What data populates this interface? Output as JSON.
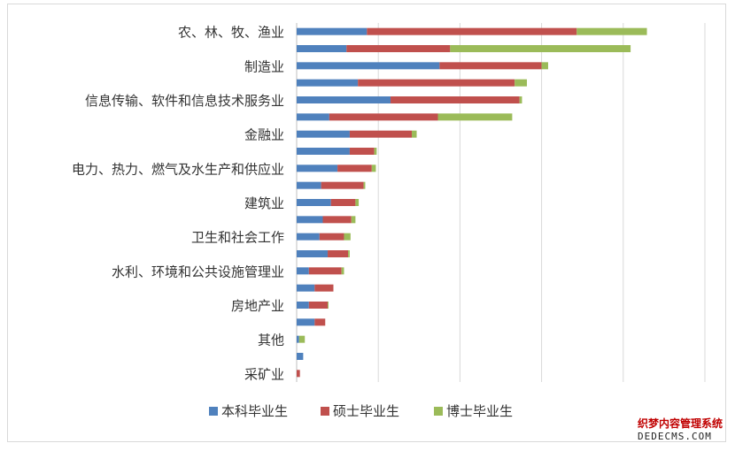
{
  "chart_data": {
    "type": "bar",
    "orientation": "horizontal",
    "stacked": true,
    "title": "",
    "xlabel": "",
    "ylabel": "",
    "tick_labels_visible": false,
    "categories": [
      "农、林、牧、渔业",
      "",
      "制造业",
      "",
      "信息传输、软件和信息技术服务业",
      "",
      "金融业",
      "",
      "电力、热力、燃气及水生产和供应业",
      "",
      "建筑业",
      "",
      "卫生和社会工作",
      "",
      "水利、环境和公共设施管理业",
      "",
      "房地产业",
      "",
      "其他",
      "",
      "采矿业"
    ],
    "series": [
      {
        "name": "本科毕业生",
        "color": "#4f81bd",
        "values": [
          0.86,
          0.61,
          1.75,
          0.75,
          1.15,
          0.4,
          0.65,
          0.65,
          0.5,
          0.3,
          0.42,
          0.32,
          0.28,
          0.38,
          0.15,
          0.22,
          0.15,
          0.22,
          0.03,
          0.08,
          0.0
        ]
      },
      {
        "name": "硕士毕业生",
        "color": "#c0504d",
        "values": [
          2.57,
          1.27,
          1.25,
          1.92,
          1.58,
          1.33,
          0.76,
          0.3,
          0.42,
          0.52,
          0.3,
          0.35,
          0.3,
          0.25,
          0.4,
          0.23,
          0.23,
          0.13,
          0.0,
          0.0,
          0.04
        ]
      },
      {
        "name": "博士毕业生",
        "color": "#9bbb59",
        "values": [
          0.86,
          2.21,
          0.08,
          0.15,
          0.03,
          0.91,
          0.06,
          0.03,
          0.05,
          0.02,
          0.04,
          0.05,
          0.08,
          0.02,
          0.03,
          0.0,
          0.01,
          0.0,
          0.07,
          0.0,
          0.0
        ]
      }
    ],
    "xlim": [
      0,
      5
    ],
    "grid": true,
    "legend_position": "bottom"
  },
  "watermark": {
    "line1": "织梦内容管理系统",
    "line2": "DEDECMS.COM"
  }
}
